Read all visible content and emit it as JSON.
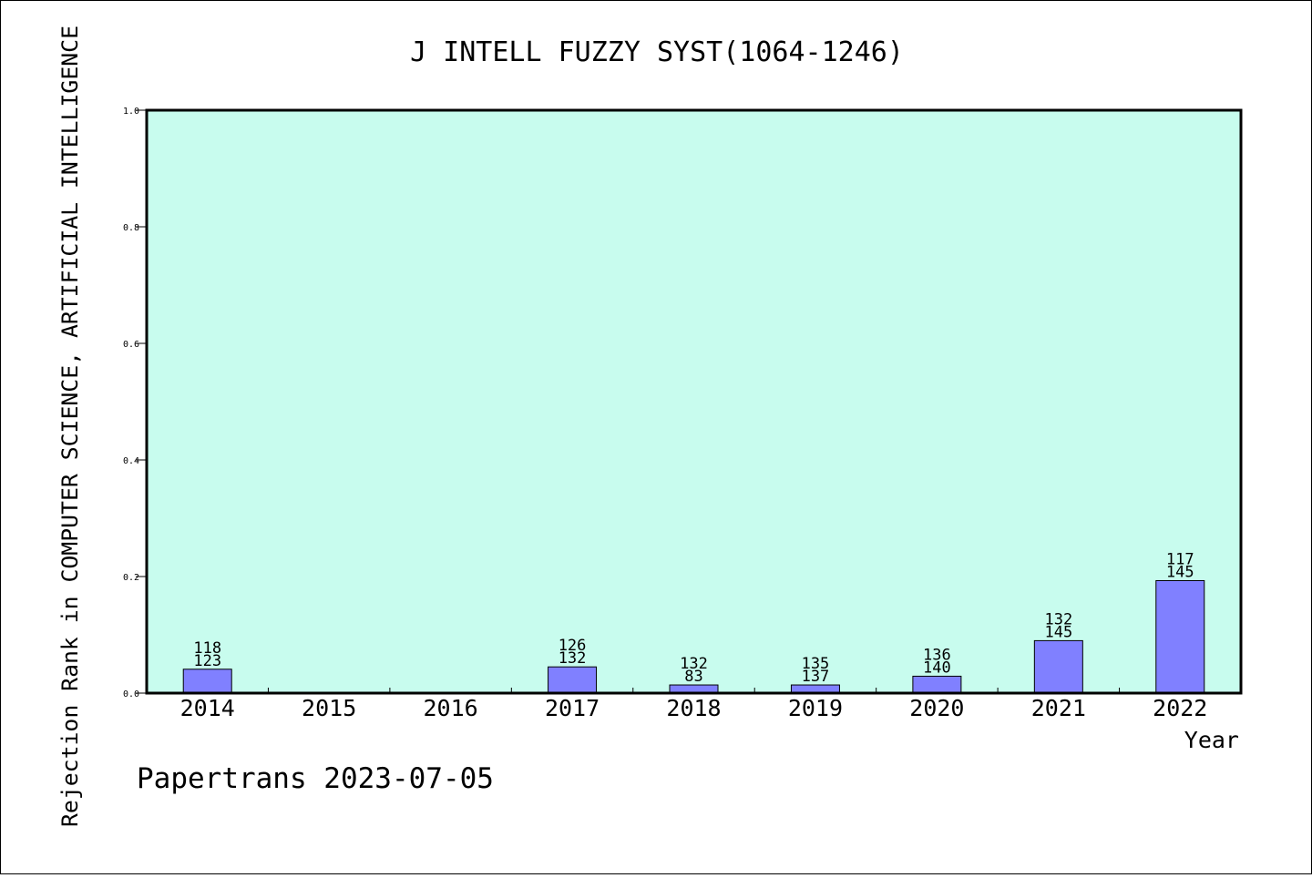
{
  "chart_data": {
    "type": "bar",
    "title": "J INTELL FUZZY SYST(1064-1246)",
    "xlabel": "Year",
    "ylabel": "Rejection Rank in COMPUTER SCIENCE, ARTIFICIAL INTELLIGENCE",
    "footer": "Papertrans 2023-07-05",
    "categories": [
      "2014",
      "2015",
      "2016",
      "2017",
      "2018",
      "2019",
      "2020",
      "2021",
      "2022"
    ],
    "values": [
      0.041,
      0,
      0,
      0.045,
      0.014,
      0.014,
      0.029,
      0.09,
      0.193
    ],
    "label_top": [
      "118",
      "",
      "",
      "126",
      "132",
      "135",
      "136",
      "132",
      "117"
    ],
    "label_bottom": [
      "123",
      "",
      "",
      "132",
      "83",
      "137",
      "140",
      "145",
      "145"
    ],
    "ylim": [
      0,
      1.0
    ],
    "yticks": [
      "0.0",
      "0.2",
      "0.4",
      "0.6",
      "0.8",
      "1.0"
    ],
    "grid": false,
    "colors": {
      "plot_background": "#c8fcee",
      "bar_fill": "#8080ff",
      "bar_stroke": "#000000"
    }
  }
}
